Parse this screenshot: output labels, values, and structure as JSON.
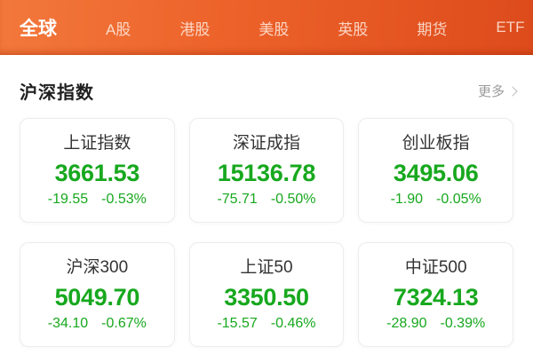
{
  "topbar": {
    "tabs": [
      {
        "label": "全球",
        "active": true
      },
      {
        "label": "A股",
        "active": false
      },
      {
        "label": "港股",
        "active": false
      },
      {
        "label": "美股",
        "active": false
      },
      {
        "label": "英股",
        "active": false
      },
      {
        "label": "期货",
        "active": false
      },
      {
        "label": "ETF",
        "active": false
      }
    ]
  },
  "section": {
    "title": "沪深指数",
    "more_label": "更多",
    "chevron_icon": "chevron-right"
  },
  "indices": [
    {
      "name": "上证指数",
      "value": "3661.53",
      "change": "-19.55",
      "change_pct": "-0.53%"
    },
    {
      "name": "深证成指",
      "value": "15136.78",
      "change": "-75.71",
      "change_pct": "-0.50%"
    },
    {
      "name": "创业板指",
      "value": "3495.06",
      "change": "-1.90",
      "change_pct": "-0.05%"
    },
    {
      "name": "沪深300",
      "value": "5049.70",
      "change": "-34.10",
      "change_pct": "-0.67%"
    },
    {
      "name": "上证50",
      "value": "3350.50",
      "change": "-15.57",
      "change_pct": "-0.46%"
    },
    {
      "name": "中证500",
      "value": "7324.13",
      "change": "-28.90",
      "change_pct": "-0.39%"
    }
  ],
  "colors": {
    "topbar_gradient_start": "#f2783b",
    "topbar_gradient_end": "#dd4b1c",
    "active_tab_text": "#ffffff",
    "inactive_tab_text": "#ffe9de",
    "decline_green": "#17a81e",
    "section_title_text": "#1f1f1f",
    "more_text": "#9b9b9b",
    "card_border": "#ececec"
  }
}
